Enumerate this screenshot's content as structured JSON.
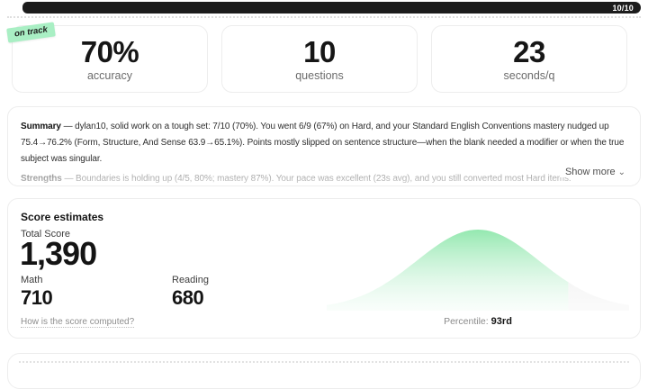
{
  "progress": {
    "count_label": "10/10"
  },
  "badge": {
    "label": "on track",
    "bg_color": "#a9efc4"
  },
  "stats": [
    {
      "value": "70%",
      "label": "accuracy"
    },
    {
      "value": "10",
      "label": "questions"
    },
    {
      "value": "23",
      "label": "seconds/q"
    }
  ],
  "summary": {
    "p1_label": "Summary",
    "p1_text": " — dylan10, solid work on a tough set: 7/10 (70%). You went 6/9 (67%) on Hard, and your Standard English Conventions mastery nudged up 75.4→76.2% (Form, Structure, And Sense 63.9→65.1%). Points mostly slipped on sentence structure—when the blank needed a modifier or when the true subject was singular.",
    "p2_label": "Strengths",
    "p2_text": " — Boundaries is holding up (4/5, 80%; mastery 87%). Your pace was excellent (23s avg), and you still converted most Hard items.",
    "show_more_label": "Show more",
    "chevron": "⌄"
  },
  "score": {
    "title": "Score estimates",
    "total_label": "Total Score",
    "total_value": "1,390",
    "math_label": "Math",
    "math_value": "710",
    "reading_label": "Reading",
    "reading_value": "680",
    "link_label": "How is the score computed?",
    "percentile_label": "Percentile:",
    "percentile_value": "93rd"
  },
  "chart_data": {
    "type": "area",
    "description": "Normal distribution bell curve of total scores; area up to user's percentile filled green, remaining right tail gray",
    "percentile": 93,
    "fill_color": "#8ee7ab",
    "fill_color_bottom": "#d9f5e4",
    "tail_color": "#e6e6e6",
    "annotation": "Percentile: 93rd"
  }
}
